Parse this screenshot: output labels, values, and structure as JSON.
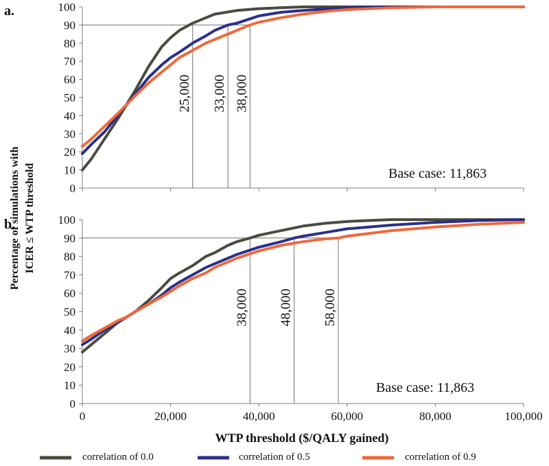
{
  "chart_data": {
    "type": "line",
    "xlabel": "WTP threshold ($/QALY gained)",
    "ylabel_line1": "Percentage of simulations with",
    "ylabel_line2": "ICER ≤ WTP threshold",
    "x_ticks": [
      "0",
      "20,000",
      "40,000",
      "60,000",
      "80,000",
      "100,000"
    ],
    "y_ticks": [
      "0",
      "10",
      "20",
      "30",
      "40",
      "50",
      "60",
      "70",
      "80",
      "90",
      "100"
    ],
    "xlim": [
      0,
      100000
    ],
    "ylim": [
      0,
      100
    ],
    "threshold_pct": 90,
    "legend": [
      {
        "label": "correlation of  0.0",
        "color": "#4a4a3f"
      },
      {
        "label": "correlation of 0.5",
        "color": "#2b2f8a"
      },
      {
        "label": "correlation of 0.9",
        "color": "#f0683a"
      }
    ],
    "panels": [
      {
        "label": "a.",
        "base_case_text": "Base case: 11,863",
        "markers": [
          {
            "x": 25000,
            "label": "25,000"
          },
          {
            "x": 33000,
            "label": "33,000"
          },
          {
            "x": 38000,
            "label": "38,000"
          }
        ],
        "series": [
          {
            "name": "correlation of  0.0",
            "color": "#4a4a3f",
            "x": [
              0,
              2000,
              5000,
              8000,
              10000,
              12000,
              15000,
              18000,
              20000,
              22000,
              25000,
              28000,
              30000,
              35000,
              40000,
              45000,
              50000,
              60000,
              100000
            ],
            "y": [
              10,
              16,
              27,
              38,
              46,
              54,
              67,
              78,
              83,
              87,
              91,
              94,
              96,
              98,
              99,
              99.5,
              100,
              100,
              100
            ]
          },
          {
            "name": "correlation of 0.5",
            "color": "#2b2f8a",
            "x": [
              0,
              2000,
              5000,
              8000,
              10000,
              12000,
              15000,
              18000,
              20000,
              22000,
              25000,
              28000,
              30000,
              33000,
              35000,
              40000,
              45000,
              50000,
              60000,
              70000,
              100000
            ],
            "y": [
              19,
              24,
              31,
              40,
              46,
              52,
              61,
              68,
              72,
              75,
              80,
              84,
              87,
              90,
              91,
              95,
              97,
              98,
              99.5,
              100,
              100
            ]
          },
          {
            "name": "correlation of 0.9",
            "color": "#f0683a",
            "x": [
              0,
              2000,
              5000,
              8000,
              10000,
              12000,
              15000,
              18000,
              20000,
              22000,
              25000,
              28000,
              30000,
              33000,
              35000,
              38000,
              40000,
              45000,
              50000,
              55000,
              60000,
              70000,
              80000,
              100000
            ],
            "y": [
              23,
              27,
              34,
              41,
              46,
              51,
              58,
              64,
              68,
              72,
              76,
              80,
              82,
              85,
              87,
              90,
              91.5,
              94,
              96,
              97.5,
              98.5,
              99.5,
              100,
              100
            ]
          }
        ]
      },
      {
        "label": "b.",
        "base_case_text": "Base case: 11,863",
        "markers": [
          {
            "x": 38000,
            "label": "38,000"
          },
          {
            "x": 48000,
            "label": "48,000"
          },
          {
            "x": 58000,
            "label": "58,000"
          }
        ],
        "series": [
          {
            "name": "correlation of  0.0",
            "color": "#4a4a3f",
            "x": [
              0,
              2000,
              5000,
              8000,
              10000,
              12000,
              15000,
              18000,
              20000,
              22000,
              25000,
              28000,
              30000,
              33000,
              35000,
              38000,
              40000,
              45000,
              50000,
              55000,
              60000,
              65000,
              70000,
              100000
            ],
            "y": [
              28,
              32,
              38,
              44,
              47,
              50,
              56,
              63,
              68,
              71,
              75,
              80,
              82,
              86,
              88,
              90,
              91.5,
              94,
              96.5,
              98,
              99,
              99.5,
              100,
              100
            ]
          },
          {
            "name": "correlation of 0.5",
            "color": "#2b2f8a",
            "x": [
              0,
              2000,
              5000,
              8000,
              10000,
              12000,
              15000,
              18000,
              20000,
              22000,
              25000,
              28000,
              30000,
              35000,
              40000,
              45000,
              48000,
              50000,
              55000,
              60000,
              65000,
              70000,
              80000,
              90000,
              100000
            ],
            "y": [
              32,
              35,
              40,
              44,
              47,
              50,
              54,
              59,
              63,
              66,
              70,
              74,
              76,
              81,
              85,
              88,
              90,
              91,
              93,
              95,
              96,
              97,
              98.5,
              99.5,
              100
            ]
          },
          {
            "name": "correlation of 0.9",
            "color": "#f0683a",
            "x": [
              0,
              2000,
              5000,
              8000,
              10000,
              12000,
              15000,
              18000,
              20000,
              22000,
              25000,
              28000,
              30000,
              35000,
              40000,
              45000,
              50000,
              55000,
              58000,
              60000,
              65000,
              70000,
              80000,
              90000,
              100000
            ],
            "y": [
              34,
              37,
              41,
              45,
              47,
              50,
              54,
              58,
              61,
              64,
              68,
              71,
              74,
              79,
              83,
              86,
              88,
              89.5,
              90,
              91,
              92.5,
              94,
              96,
              97.5,
              98.5
            ]
          }
        ]
      }
    ]
  }
}
